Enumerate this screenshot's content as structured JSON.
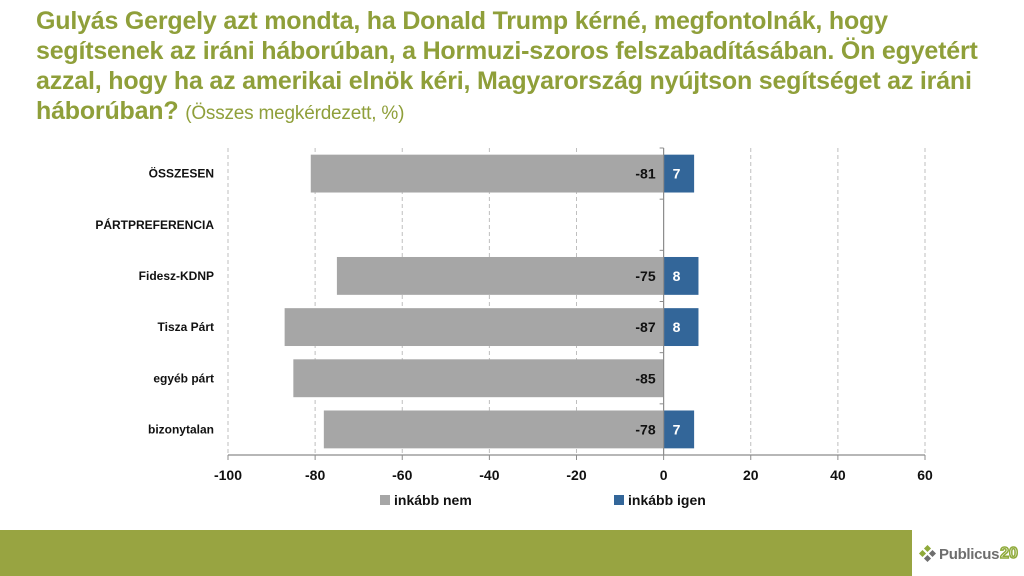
{
  "title": {
    "main": "Gulyás Gergely azt mondta, ha Donald Trump kérné, megfontolnák, hogy segítsenek az iráni háborúban, a Hormuzi-szoros felszabadításában. Ön egyetért azzal, hogy ha az amerikai elnök kéri, Magyarország nyújtson segítséget az iráni háborúban?",
    "subtitle": "(Összes megkérdezett, %)"
  },
  "colors": {
    "title": "#8f9f3a",
    "no": "#a6a6a6",
    "yes": "#336699",
    "footer_band": "#98a441"
  },
  "chart_data": {
    "type": "bar",
    "orientation": "horizontal",
    "stacked": "diverging",
    "title": "",
    "xlabel": "",
    "ylabel": "",
    "xlim": [
      -100,
      60
    ],
    "x_ticks": [
      -100,
      -80,
      -60,
      -40,
      -20,
      0,
      20,
      40,
      60
    ],
    "grid": "vertical dashed",
    "legend_position": "bottom",
    "categories": [
      "ÖSSZESEN",
      "PÁRTPREFERENCIA",
      "Fidesz-KDNP",
      "Tisza Párt",
      "egyéb párt",
      "bizonytalan"
    ],
    "series": [
      {
        "name": "inkább nem",
        "color": "#a6a6a6",
        "values": [
          -81,
          null,
          -75,
          -87,
          -85,
          -78
        ]
      },
      {
        "name": "inkább igen",
        "color": "#336699",
        "values": [
          7,
          null,
          8,
          8,
          null,
          7
        ]
      }
    ]
  },
  "footer": {
    "logo_text": "Publicus",
    "logo_number": "20"
  }
}
